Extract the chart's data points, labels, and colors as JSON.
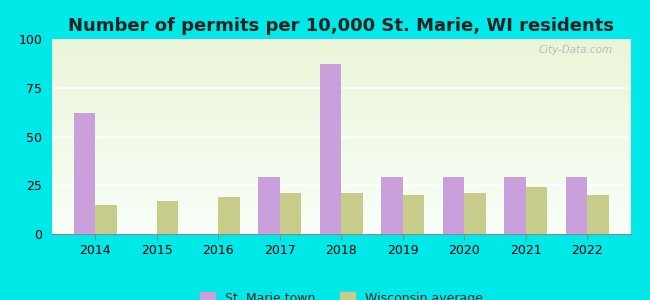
{
  "title": "Number of permits per 10,000 St. Marie, WI residents",
  "years": [
    2014,
    2015,
    2016,
    2017,
    2018,
    2019,
    2020,
    2021,
    2022
  ],
  "st_marie": [
    62,
    0,
    0,
    29,
    87,
    29,
    29,
    29,
    29
  ],
  "wi_avg": [
    15,
    17,
    19,
    21,
    21,
    20,
    21,
    24,
    20
  ],
  "bar_color_st_marie": "#c9a0dc",
  "bar_color_wi_avg": "#c8cc8a",
  "background_color": "#00e8e8",
  "ylim": [
    0,
    100
  ],
  "yticks": [
    0,
    25,
    50,
    75,
    100
  ],
  "bar_width": 0.35,
  "legend_label_st_marie": "St. Marie town",
  "legend_label_wi_avg": "Wisconsin average",
  "watermark": "City-Data.com",
  "title_fontsize": 13,
  "tick_fontsize": 9,
  "legend_fontsize": 9
}
